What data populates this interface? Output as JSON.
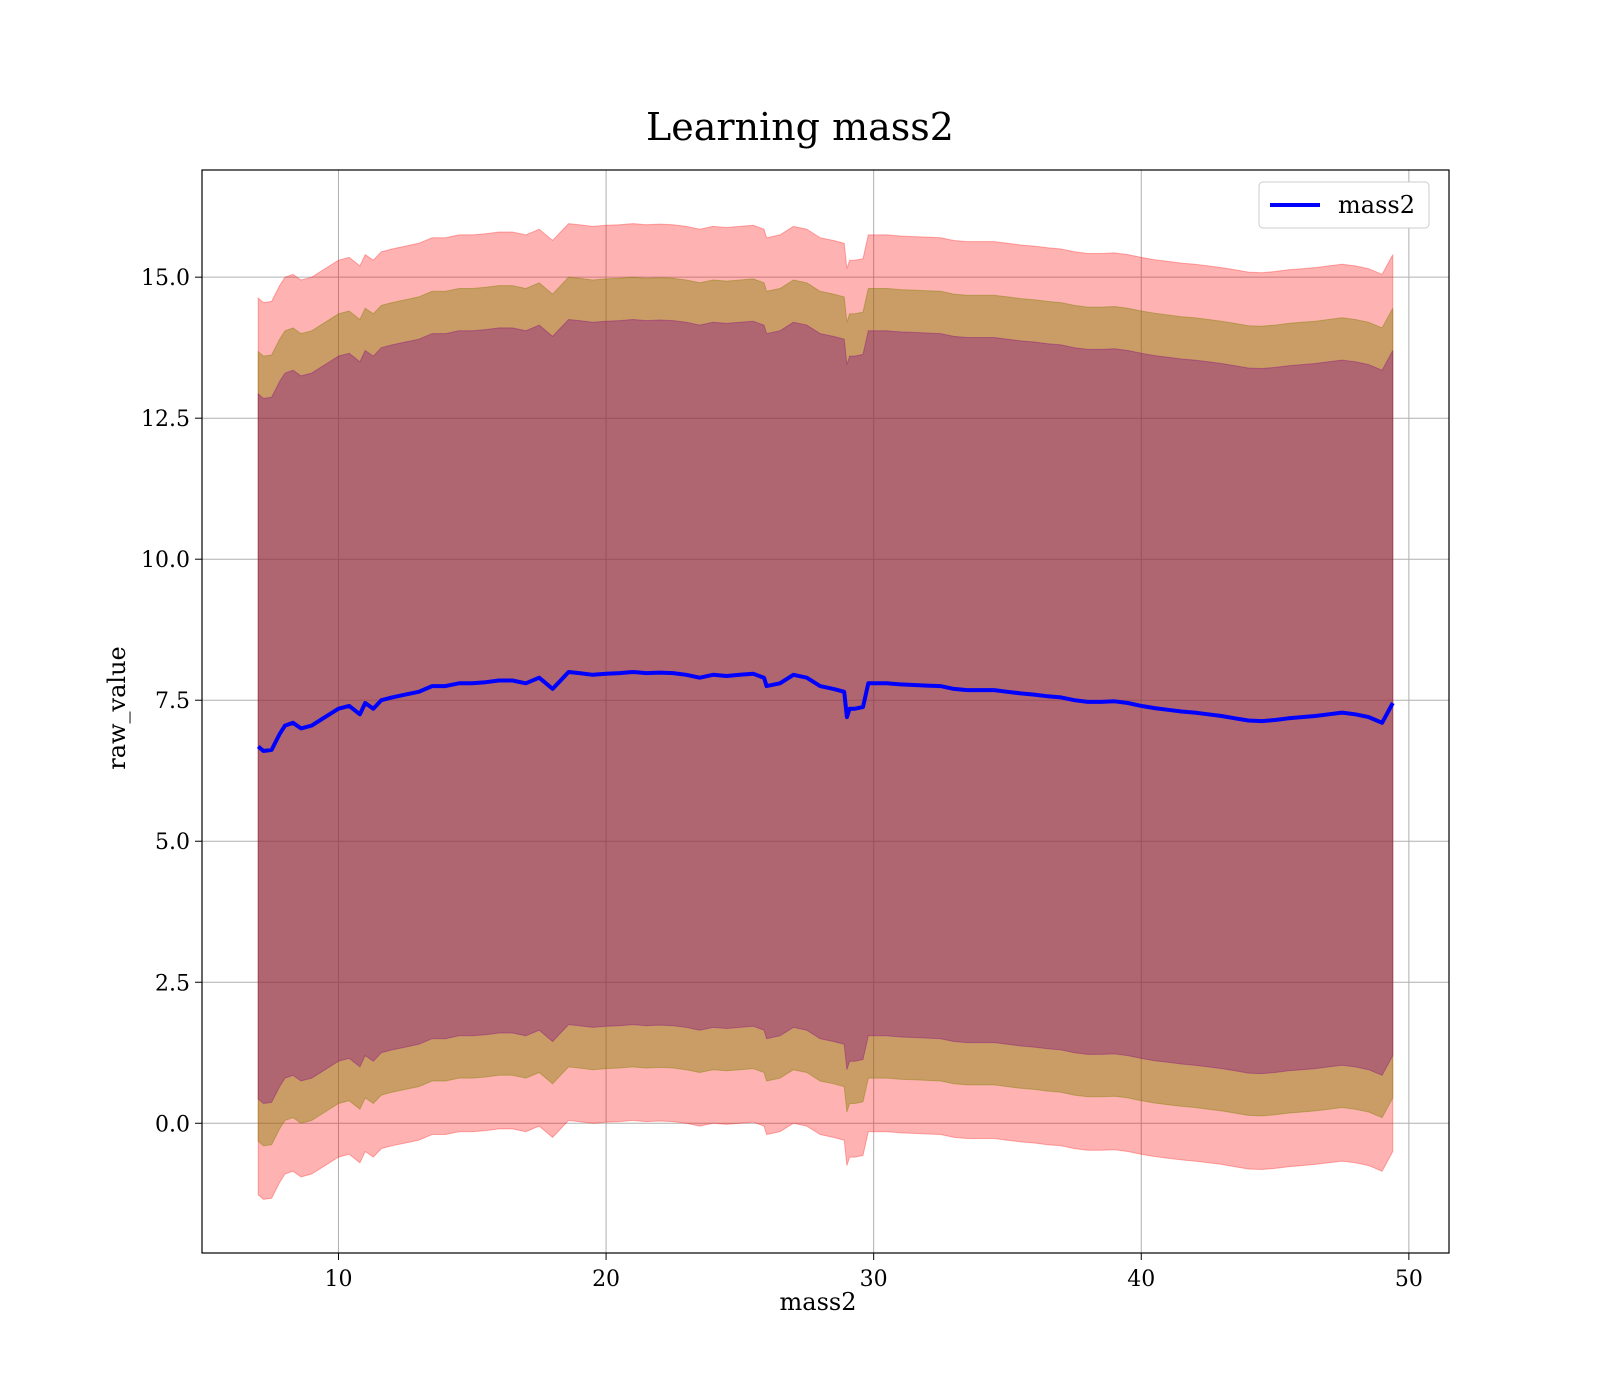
{
  "chart_data": {
    "type": "area",
    "title": "Learning mass2",
    "xlabel": "mass2",
    "ylabel": "raw_value",
    "xlim": [
      4.9,
      51.5
    ],
    "ylim": [
      -2.3,
      16.9
    ],
    "xticks": [
      "10",
      "20",
      "30",
      "40",
      "50"
    ],
    "xtick_values": [
      10,
      20,
      30,
      40,
      50
    ],
    "yticks": [
      "0.0",
      "2.5",
      "5.0",
      "7.5",
      "10.0",
      "12.5",
      "15.0"
    ],
    "ytick_values": [
      0,
      2.5,
      5,
      7.5,
      10,
      12.5,
      15
    ],
    "grid": true,
    "legend": {
      "position": "top-right",
      "entries": [
        "mass2"
      ]
    },
    "colors": {
      "line": "#0000ff",
      "outer_band": "#ff0000",
      "inner_band": "#808000",
      "core_band": "#800080"
    },
    "series": [
      {
        "name": "mass2",
        "x": [
          7.0,
          7.2,
          7.5,
          7.8,
          8.0,
          8.3,
          8.6,
          9.0,
          9.5,
          10.0,
          10.4,
          10.8,
          11.0,
          11.3,
          11.6,
          12.0,
          12.5,
          13.0,
          13.5,
          14.0,
          14.5,
          15.0,
          15.5,
          16.0,
          16.5,
          17.0,
          17.5,
          18.0,
          18.3,
          18.6,
          19.0,
          19.5,
          20.0,
          20.5,
          21.0,
          21.5,
          22.0,
          22.5,
          23.0,
          23.5,
          24.0,
          24.5,
          25.0,
          25.5,
          25.9,
          26.0,
          26.5,
          27.0,
          27.5,
          28.0,
          28.5,
          28.9,
          29.0,
          29.1,
          29.3,
          29.6,
          29.8,
          30.0,
          30.5,
          31.0,
          31.5,
          32.0,
          32.5,
          33.0,
          33.5,
          34.0,
          34.5,
          35.0,
          35.5,
          36.0,
          36.5,
          37.0,
          37.5,
          38.0,
          38.5,
          39.0,
          39.5,
          40.0,
          40.5,
          41.0,
          41.5,
          42.0,
          42.5,
          43.0,
          43.5,
          44.0,
          44.5,
          45.0,
          45.5,
          46.0,
          46.5,
          47.0,
          47.5,
          48.0,
          48.5,
          49.0,
          49.4
        ],
        "values": [
          6.68,
          6.6,
          6.62,
          6.9,
          7.05,
          7.1,
          7.0,
          7.05,
          7.2,
          7.35,
          7.4,
          7.25,
          7.45,
          7.35,
          7.5,
          7.55,
          7.6,
          7.65,
          7.75,
          7.75,
          7.8,
          7.8,
          7.82,
          7.85,
          7.85,
          7.8,
          7.9,
          7.7,
          7.85,
          8.0,
          7.98,
          7.95,
          7.97,
          7.98,
          8.0,
          7.98,
          7.99,
          7.98,
          7.95,
          7.9,
          7.95,
          7.93,
          7.95,
          7.97,
          7.9,
          7.75,
          7.8,
          7.95,
          7.9,
          7.75,
          7.7,
          7.65,
          7.2,
          7.35,
          7.35,
          7.38,
          7.8,
          7.8,
          7.8,
          7.78,
          7.77,
          7.76,
          7.75,
          7.7,
          7.68,
          7.68,
          7.68,
          7.65,
          7.62,
          7.6,
          7.57,
          7.55,
          7.5,
          7.47,
          7.47,
          7.48,
          7.45,
          7.4,
          7.36,
          7.33,
          7.3,
          7.28,
          7.25,
          7.22,
          7.18,
          7.14,
          7.13,
          7.15,
          7.18,
          7.2,
          7.22,
          7.25,
          7.28,
          7.25,
          7.2,
          7.1,
          7.45
        ],
        "band_outer_halfwidth": 7.95,
        "band_inner_halfwidth": 7.0
      }
    ]
  }
}
